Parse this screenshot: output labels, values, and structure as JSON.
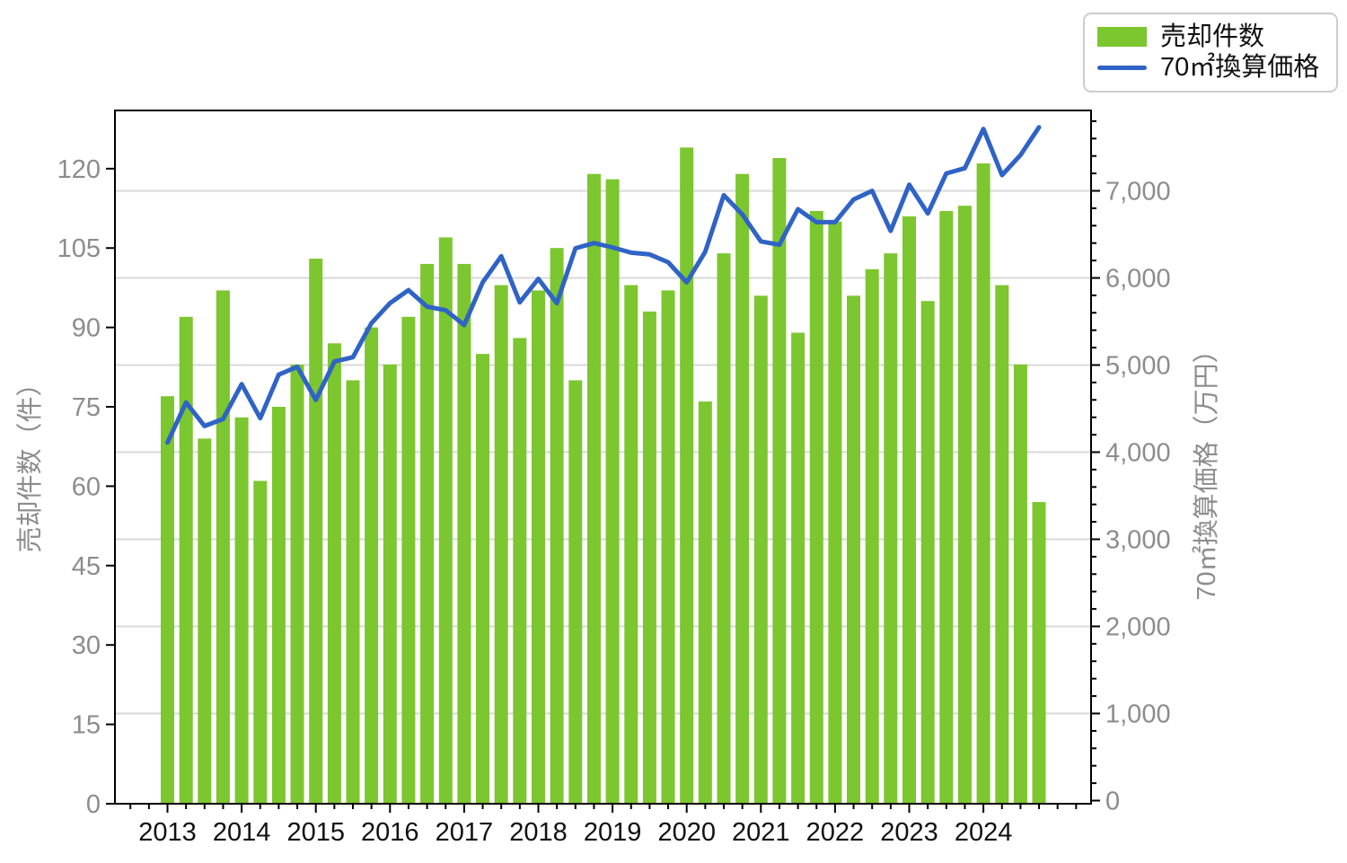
{
  "legend": {
    "items": [
      {
        "label": "売却件数",
        "type": "bar",
        "color": "#7cc62f"
      },
      {
        "label": "70㎡換算価格",
        "type": "line",
        "color": "#2f63c6"
      }
    ]
  },
  "left_axis": {
    "title": "売却件数（件）",
    "tick_values": [
      0,
      15,
      30,
      45,
      60,
      75,
      90,
      105,
      120
    ],
    "tick_labels": [
      "0",
      "15",
      "30",
      "45",
      "60",
      "75",
      "90",
      "105",
      "120"
    ],
    "max": 131
  },
  "right_axis": {
    "title": "70㎡換算価格（万円）",
    "tick_values": [
      0,
      1000,
      2000,
      3000,
      4000,
      5000,
      6000,
      7000
    ],
    "tick_labels": [
      "0",
      "1,000",
      "2,000",
      "3,000",
      "4,000",
      "5,000",
      "6,000",
      "7,000"
    ],
    "minor_step": 200,
    "minor_max": 7800
  },
  "x_axis": {
    "year_labels": [
      "2013",
      "2014",
      "2015",
      "2016",
      "2017",
      "2018",
      "2019",
      "2020",
      "2021",
      "2022",
      "2023",
      "2024"
    ],
    "quarters_per_year": 4
  },
  "chart_data": {
    "type": "bar+line",
    "title": "",
    "x": [
      "2013Q1",
      "2013Q2",
      "2013Q3",
      "2013Q4",
      "2014Q1",
      "2014Q2",
      "2014Q3",
      "2014Q4",
      "2015Q1",
      "2015Q2",
      "2015Q3",
      "2015Q4",
      "2016Q1",
      "2016Q2",
      "2016Q3",
      "2016Q4",
      "2017Q1",
      "2017Q2",
      "2017Q3",
      "2017Q4",
      "2018Q1",
      "2018Q2",
      "2018Q3",
      "2018Q4",
      "2019Q1",
      "2019Q2",
      "2019Q3",
      "2019Q4",
      "2020Q1",
      "2020Q2",
      "2020Q3",
      "2020Q4",
      "2021Q1",
      "2021Q2",
      "2021Q3",
      "2021Q4",
      "2022Q1",
      "2022Q2",
      "2022Q3",
      "2022Q4",
      "2023Q1",
      "2023Q2",
      "2023Q3",
      "2023Q4",
      "2024Q1",
      "2024Q2",
      "2024Q3",
      "2024Q4"
    ],
    "series": [
      {
        "name": "売却件数",
        "type": "bar",
        "axis": "left",
        "color": "#7cc62f",
        "values": [
          77,
          92,
          69,
          97,
          73,
          61,
          75,
          83,
          103,
          87,
          80,
          90,
          83,
          92,
          102,
          107,
          102,
          85,
          98,
          88,
          97,
          105,
          80,
          119,
          118,
          98,
          93,
          97,
          124,
          76,
          104,
          119,
          96,
          122,
          89,
          112,
          110,
          96,
          101,
          104,
          111,
          95,
          112,
          113,
          121,
          98,
          83,
          57
        ]
      },
      {
        "name": "70㎡換算価格",
        "type": "line",
        "axis": "right",
        "color": "#2f63c6",
        "values": [
          4110,
          4570,
          4300,
          4380,
          4780,
          4390,
          4890,
          4980,
          4600,
          5040,
          5090,
          5480,
          5710,
          5860,
          5670,
          5630,
          5460,
          5950,
          6250,
          5720,
          5990,
          5710,
          6340,
          6400,
          6350,
          6290,
          6270,
          6180,
          5950,
          6300,
          6950,
          6730,
          6420,
          6380,
          6790,
          6640,
          6640,
          6900,
          7000,
          6540,
          7070,
          6740,
          7200,
          7260,
          7710,
          7180,
          7410,
          7730
        ]
      }
    ],
    "xlabel": "",
    "ylabel_left": "売却件数（件）",
    "ylabel_right": "70㎡換算価格（万円）",
    "ylim_left": [
      0,
      131
    ],
    "ylim_right": [
      0,
      7960
    ],
    "grid": "horizontal gridlines at right-axis 1,000 steps",
    "legend_position": "upper right",
    "colors": {
      "bar": "#7cc62f",
      "line": "#2f63c6",
      "grid": "#d8d8d8",
      "spine": "#000000",
      "tick_label": "#8c8c8c",
      "x_tick_label": "#111111"
    }
  }
}
